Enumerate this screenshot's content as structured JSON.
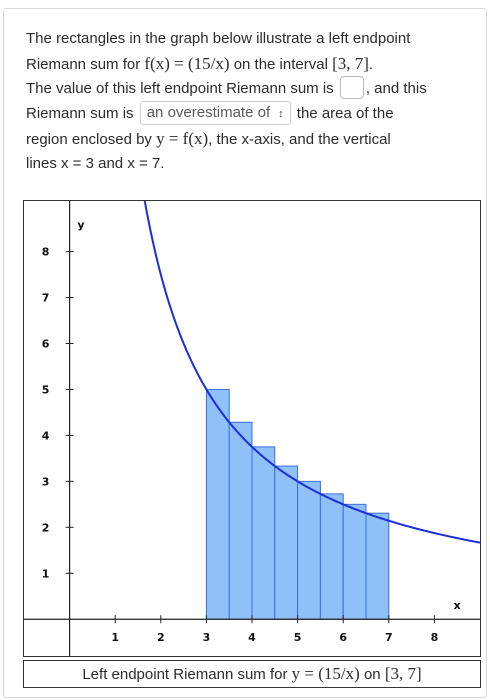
{
  "problem": {
    "line1_prefix": "The rectangles in the graph below illustrate a left endpoint",
    "line2_prefix": "Riemann sum for",
    "function_expr": "f(x) = (15/x)",
    "line2_mid": "on the interval",
    "interval": "[3, 7]",
    "line2_end": ".",
    "line3_prefix": "The value of this left endpoint Riemann sum is",
    "line3_suffix": ", and this",
    "line4_prefix": "Riemann sum is",
    "line4_suffix": "the area of the",
    "line5_prefix": "region enclosed by",
    "line5_expr": "y = f(x)",
    "line5_suffix": ", the x-axis, and the vertical",
    "line6": "lines x = 3 and x = 7."
  },
  "answer_input": {
    "value": ""
  },
  "estimate_select": {
    "selected": "an overestimate of"
  },
  "graph": {
    "caption_prefix": "Left endpoint Riemann sum for",
    "caption_expr": "y = (15/x)",
    "caption_mid": "on",
    "caption_interval": "[3, 7]",
    "x_axis_label": "x",
    "y_axis_label": "y",
    "x_ticks": [
      1,
      2,
      3,
      4,
      5,
      6,
      7,
      8
    ],
    "y_ticks": [
      1,
      2,
      3,
      4,
      5,
      6,
      7,
      8
    ],
    "xlim": [
      -1,
      9
    ],
    "ylim": [
      -0.8,
      9.1
    ],
    "function_numerator": 15,
    "riemann": {
      "a": 3,
      "b": 7,
      "n": 8,
      "method": "left"
    },
    "curve_color": "#1a2fd6",
    "rect_fill": "#8fc0f8",
    "rect_stroke": "#3a6fd8"
  },
  "chart_data": {
    "type": "bar",
    "x": [
      3,
      3.5,
      4,
      4.5,
      5,
      5.5,
      6,
      6.5
    ],
    "values": [
      5,
      4.2857,
      3.75,
      3.3333,
      3,
      2.7273,
      2.5,
      2.3077
    ],
    "xlabel": "x",
    "ylabel": "y",
    "xlim": [
      -1,
      9
    ],
    "ylim": [
      -0.8,
      9.1
    ],
    "grid": false
  }
}
